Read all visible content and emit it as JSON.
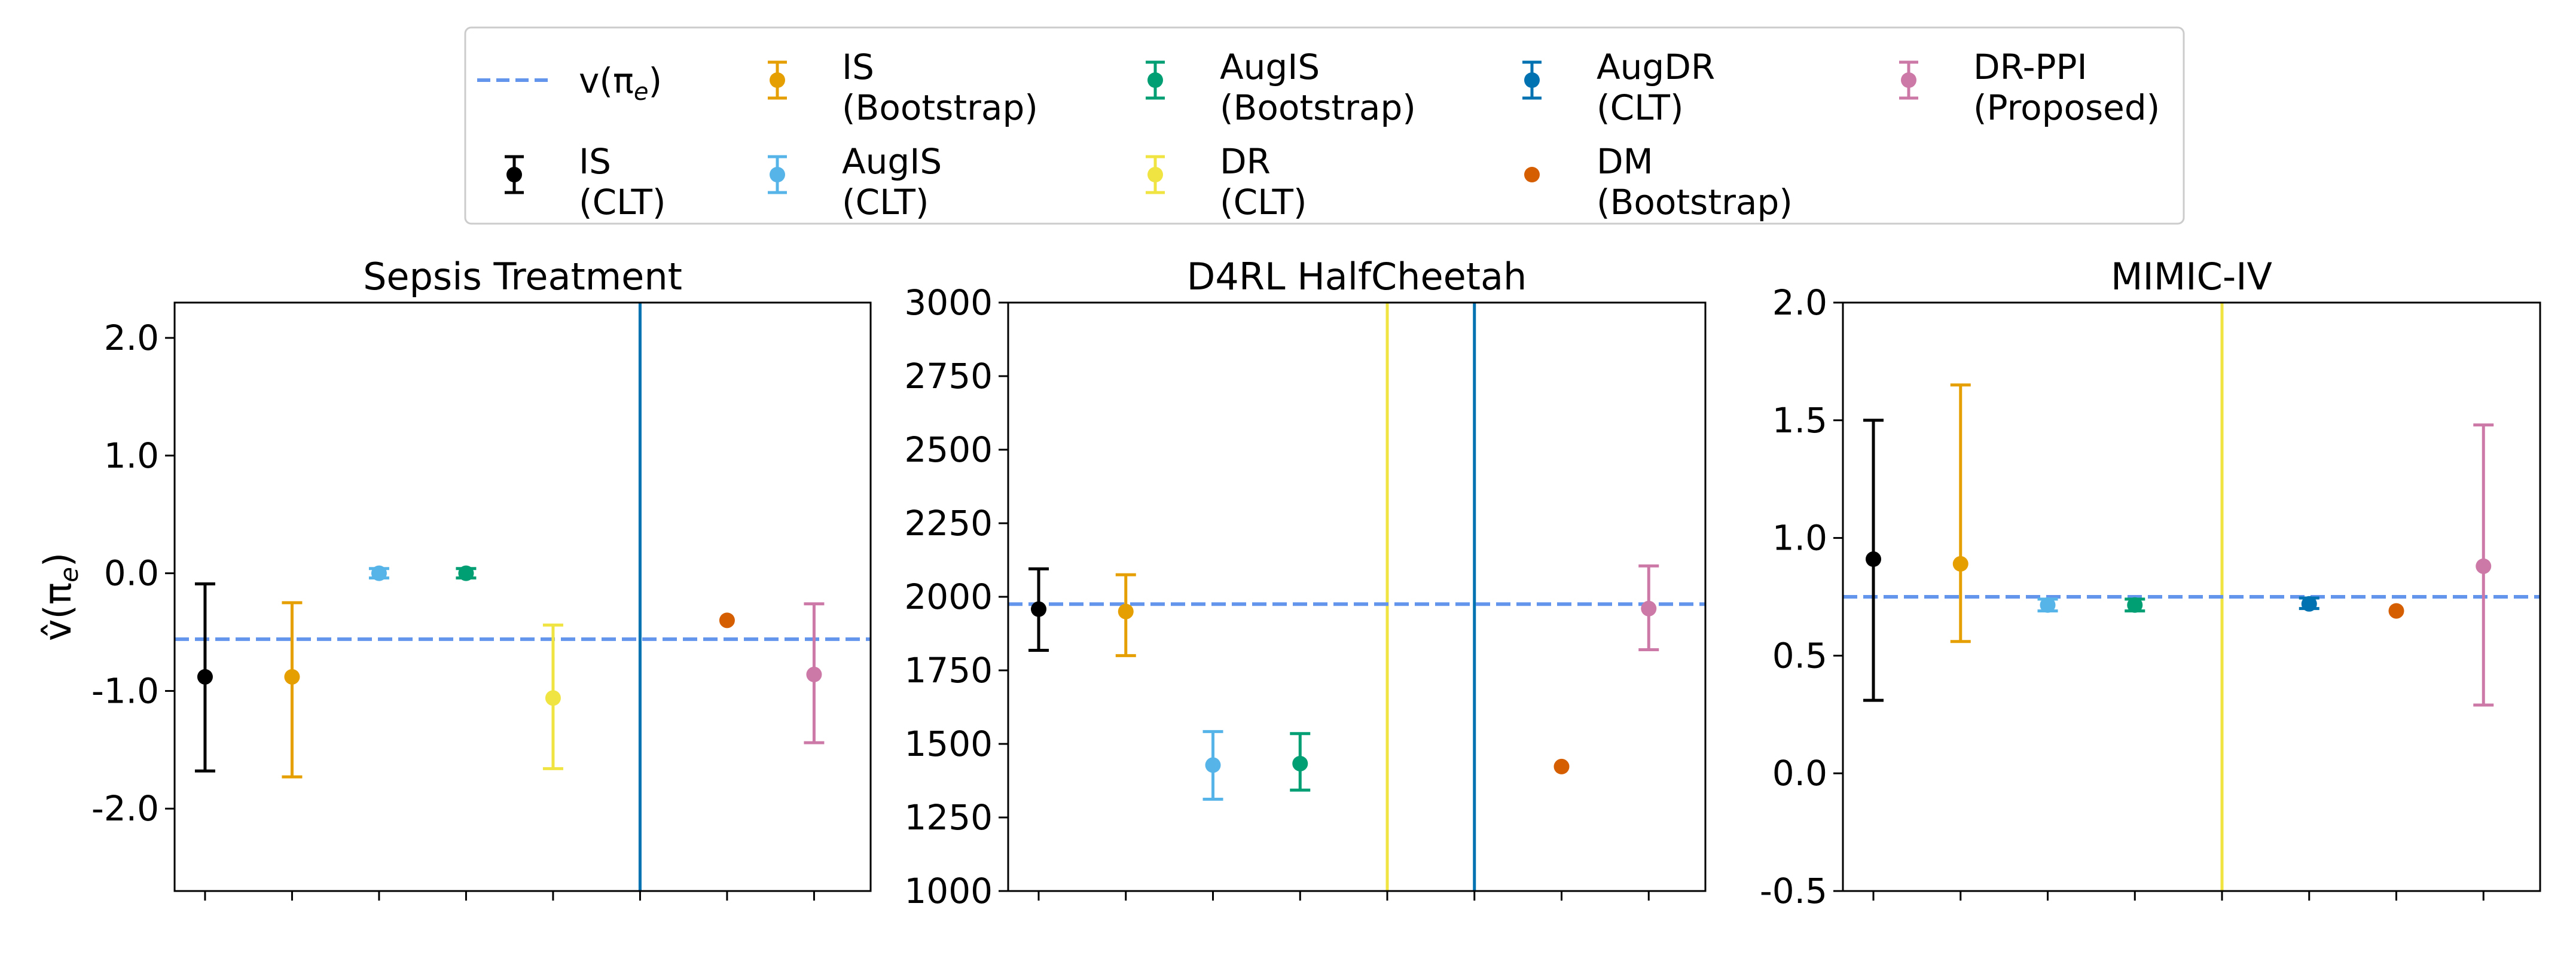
{
  "reference_line": {
    "label": "v(π",
    "label_sub": "e",
    "label_end": ")",
    "color": "#6495ED"
  },
  "estimators": [
    {
      "key": "is_clt",
      "line1": "IS",
      "line2": "(CLT)",
      "color": "#000000",
      "has_errorbar": true
    },
    {
      "key": "is_boot",
      "line1": "IS",
      "line2": "(Bootstrap)",
      "color": "#E69F00",
      "has_errorbar": true
    },
    {
      "key": "augis_clt",
      "line1": "AugIS",
      "line2": "(CLT)",
      "color": "#56B4E9",
      "has_errorbar": true
    },
    {
      "key": "augis_boot",
      "line1": "AugIS",
      "line2": "(Bootstrap)",
      "color": "#009E73",
      "has_errorbar": true
    },
    {
      "key": "dr_clt",
      "line1": "DR",
      "line2": "(CLT)",
      "color": "#F0E442",
      "has_errorbar": true
    },
    {
      "key": "augdr_clt",
      "line1": "AugDR",
      "line2": "(CLT)",
      "color": "#0072B2",
      "has_errorbar": true
    },
    {
      "key": "dm_boot",
      "line1": "DM",
      "line2": "(Bootstrap)",
      "color": "#D55E00",
      "has_errorbar": false
    },
    {
      "key": "drppi",
      "line1": "DR-PPI",
      "line2": "(Proposed)",
      "color": "#CC79A7",
      "has_errorbar": true
    }
  ],
  "chart_data": [
    {
      "type": "errorbar",
      "title": "Sepsis Treatment",
      "ylabel_main": "v̂(π",
      "ylabel_sub": "e",
      "ylabel_end": ")",
      "ylim": [
        -2.7,
        2.3
      ],
      "yticks": [
        -2.0,
        -1.0,
        0.0,
        1.0,
        2.0
      ],
      "ytick_labels": [
        "-2.0",
        "-1.0",
        "0.0",
        "1.0",
        "2.0"
      ],
      "reference": -0.56,
      "points": [
        {
          "key": "is_clt",
          "y": -0.88,
          "lo": -1.68,
          "hi": -0.09
        },
        {
          "key": "is_boot",
          "y": -0.88,
          "lo": -1.73,
          "hi": -0.25
        },
        {
          "key": "augis_clt",
          "y": 0.0,
          "lo": -0.04,
          "hi": 0.04
        },
        {
          "key": "augis_boot",
          "y": 0.0,
          "lo": -0.04,
          "hi": 0.04
        },
        {
          "key": "dr_clt",
          "y": -1.06,
          "lo": -1.66,
          "hi": -0.44
        },
        {
          "key": "augdr_clt",
          "vertical_line": true
        },
        {
          "key": "dm_boot",
          "y": -0.4
        },
        {
          "key": "drppi",
          "y": -0.86,
          "lo": -1.44,
          "hi": -0.26
        }
      ]
    },
    {
      "type": "errorbar",
      "title": "D4RL HalfCheetah",
      "ylim": [
        1000,
        3000
      ],
      "yticks": [
        1000,
        1250,
        1500,
        1750,
        2000,
        2250,
        2500,
        2750,
        3000
      ],
      "ytick_labels": [
        "1000",
        "1250",
        "1500",
        "1750",
        "2000",
        "2250",
        "2500",
        "2750",
        "3000"
      ],
      "reference": 1975,
      "points": [
        {
          "key": "is_clt",
          "y": 1958,
          "lo": 1818,
          "hi": 2095
        },
        {
          "key": "is_boot",
          "y": 1950,
          "lo": 1800,
          "hi": 2075
        },
        {
          "key": "augis_clt",
          "y": 1428,
          "lo": 1312,
          "hi": 1542
        },
        {
          "key": "augis_boot",
          "y": 1433,
          "lo": 1343,
          "hi": 1535
        },
        {
          "key": "dr_clt",
          "vertical_line": true
        },
        {
          "key": "augdr_clt",
          "vertical_line": true
        },
        {
          "key": "dm_boot",
          "y": 1423
        },
        {
          "key": "drppi",
          "y": 1960,
          "lo": 1820,
          "hi": 2105
        }
      ]
    },
    {
      "type": "errorbar",
      "title": "MIMIC-IV",
      "ylim": [
        -0.5,
        2.0
      ],
      "yticks": [
        -0.5,
        0.0,
        0.5,
        1.0,
        1.5,
        2.0
      ],
      "ytick_labels": [
        "-0.5",
        "0.0",
        "0.5",
        "1.0",
        "1.5",
        "2.0"
      ],
      "reference": 0.75,
      "points": [
        {
          "key": "is_clt",
          "y": 0.91,
          "lo": 0.31,
          "hi": 1.5
        },
        {
          "key": "is_boot",
          "y": 0.89,
          "lo": 0.56,
          "hi": 1.65
        },
        {
          "key": "augis_clt",
          "y": 0.715,
          "lo": 0.69,
          "hi": 0.74
        },
        {
          "key": "augis_boot",
          "y": 0.715,
          "lo": 0.69,
          "hi": 0.74
        },
        {
          "key": "dr_clt",
          "vertical_line": true
        },
        {
          "key": "augdr_clt",
          "y": 0.72,
          "lo": 0.7,
          "hi": 0.745
        },
        {
          "key": "dm_boot",
          "y": 0.69
        },
        {
          "key": "drppi",
          "y": 0.88,
          "lo": 0.29,
          "hi": 1.48
        }
      ]
    }
  ]
}
